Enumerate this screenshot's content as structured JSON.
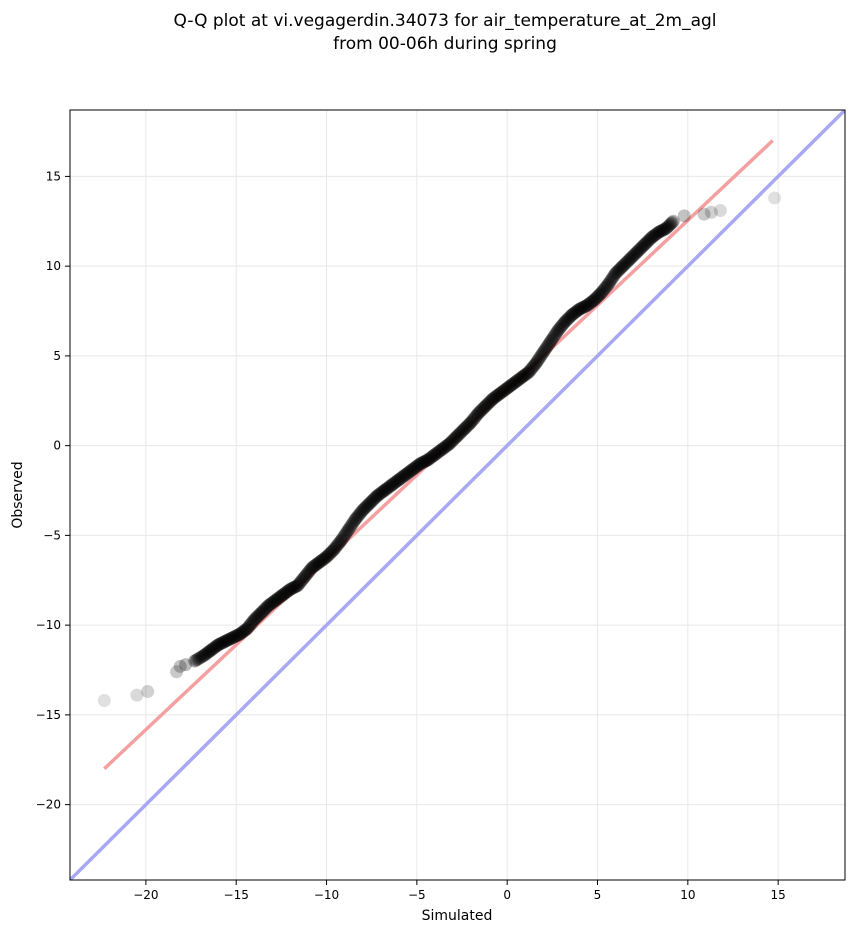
{
  "chart_data": {
    "type": "scatter",
    "title": "Q-Q plot at vi.vegagerdin.34073 for air_temperature_at_2m_agl",
    "subtitle": "from 00-06h during spring",
    "xlabel": "Simulated",
    "ylabel": "Observed",
    "xlim": [
      -24.2,
      18.7
    ],
    "ylim": [
      -24.2,
      18.7
    ],
    "xticks": [
      -20,
      -15,
      -10,
      -5,
      0,
      5,
      10,
      15
    ],
    "yticks": [
      -20,
      -15,
      -10,
      -5,
      0,
      5,
      10,
      15
    ],
    "xtick_labels": [
      "−20",
      "−15",
      "−10",
      "−5",
      "0",
      "5",
      "10",
      "15"
    ],
    "ytick_labels": [
      "−20",
      "−15",
      "−10",
      "−5",
      "0",
      "5",
      "10",
      "15"
    ],
    "grid": true,
    "colors": {
      "points": "#000000",
      "fit_line": "#f4a0a0",
      "identity_line": "#a8a8f4",
      "grid": "#e8e8e8"
    },
    "identity_line": [
      [
        -24.2,
        -24.2
      ],
      [
        18.7,
        18.7
      ]
    ],
    "fit_line": [
      [
        -22.3,
        -18.0
      ],
      [
        14.7,
        17.0
      ]
    ],
    "quantiles": {
      "x": [
        -22.3,
        -20.5,
        -19.9,
        -18.3,
        -18.1,
        -17.8,
        -17.3,
        -16.8,
        -16.4,
        -16.0,
        -15.6,
        -15.2,
        -14.8,
        -14.4,
        -14.0,
        -13.6,
        -13.2,
        -12.8,
        -12.4,
        -12.0,
        -11.6,
        -11.2,
        -10.8,
        -10.4,
        -10.0,
        -9.6,
        -9.2,
        -8.8,
        -8.4,
        -8.0,
        -7.6,
        -7.2,
        -6.8,
        -6.4,
        -6.0,
        -5.6,
        -5.2,
        -4.8,
        -4.4,
        -4.0,
        -3.6,
        -3.2,
        -2.8,
        -2.4,
        -2.0,
        -1.6,
        -1.2,
        -0.8,
        -0.4,
        0.0,
        0.4,
        0.8,
        1.2,
        1.6,
        2.0,
        2.4,
        2.8,
        3.2,
        3.6,
        4.0,
        4.4,
        4.8,
        5.2,
        5.6,
        6.0,
        6.4,
        6.8,
        7.2,
        7.6,
        8.0,
        8.4,
        8.8,
        9.2,
        9.8,
        10.9,
        11.3,
        11.8,
        14.8
      ],
      "y": [
        -14.2,
        -13.9,
        -13.7,
        -12.6,
        -12.3,
        -12.2,
        -12.0,
        -11.7,
        -11.4,
        -11.1,
        -10.9,
        -10.7,
        -10.5,
        -10.2,
        -9.7,
        -9.3,
        -8.9,
        -8.6,
        -8.3,
        -8.0,
        -7.8,
        -7.3,
        -6.8,
        -6.5,
        -6.2,
        -5.8,
        -5.3,
        -4.7,
        -4.1,
        -3.6,
        -3.2,
        -2.8,
        -2.5,
        -2.2,
        -1.9,
        -1.6,
        -1.3,
        -1.0,
        -0.8,
        -0.5,
        -0.2,
        0.1,
        0.5,
        0.9,
        1.3,
        1.8,
        2.2,
        2.6,
        2.9,
        3.2,
        3.5,
        3.8,
        4.1,
        4.6,
        5.2,
        5.8,
        6.4,
        6.9,
        7.3,
        7.6,
        7.8,
        8.1,
        8.5,
        9.0,
        9.6,
        10.0,
        10.4,
        10.8,
        11.2,
        11.6,
        11.9,
        12.1,
        12.5,
        12.8,
        12.9,
        13.0,
        13.1,
        13.8
      ]
    }
  }
}
